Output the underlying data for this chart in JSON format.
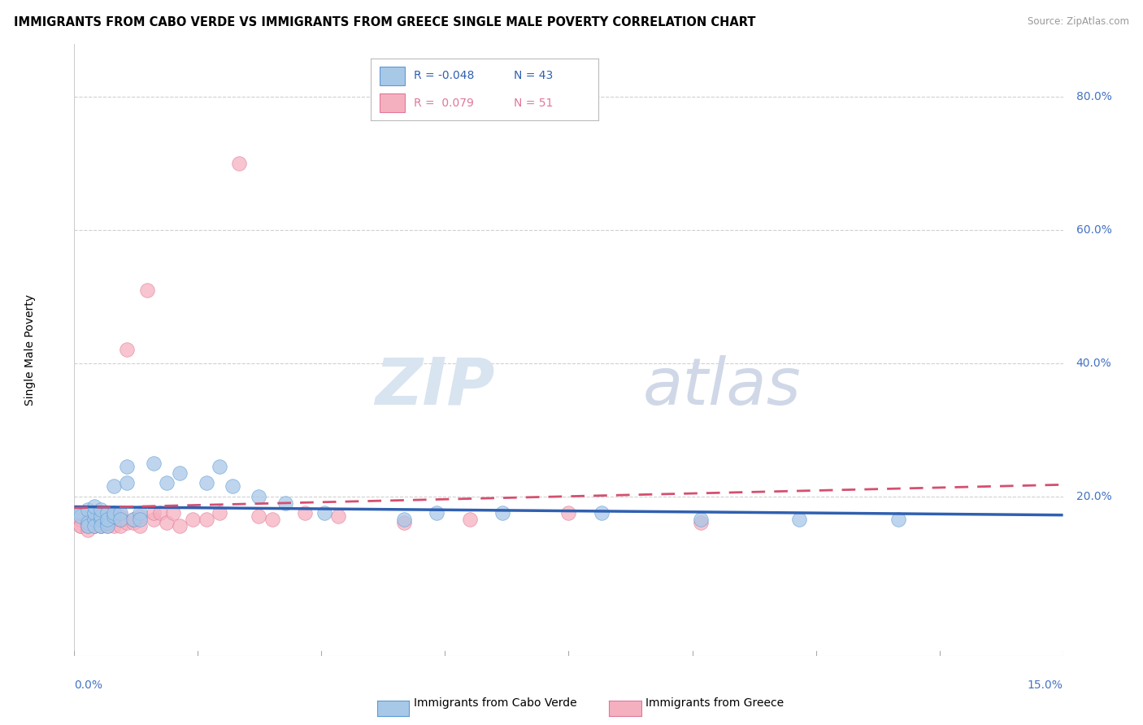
{
  "title": "IMMIGRANTS FROM CABO VERDE VS IMMIGRANTS FROM GREECE SINGLE MALE POVERTY CORRELATION CHART",
  "source": "Source: ZipAtlas.com",
  "ylabel": "Single Male Poverty",
  "xlim": [
    0.0,
    0.15
  ],
  "ylim": [
    -0.04,
    0.88
  ],
  "y_ticks": [
    0.2,
    0.4,
    0.6,
    0.8
  ],
  "y_tick_labels": [
    "20.0%",
    "40.0%",
    "60.0%",
    "80.0%"
  ],
  "x_left_label": "0.0%",
  "x_right_label": "15.0%",
  "legend_cabo_r": "-0.048",
  "legend_cabo_n": "43",
  "legend_greece_r": "0.079",
  "legend_greece_n": "51",
  "cabo_color": "#a8c8e8",
  "greece_color": "#f5b0c0",
  "cabo_edge_color": "#5b9bd5",
  "greece_edge_color": "#e07898",
  "cabo_line_color": "#3060b0",
  "greece_line_color": "#d45070",
  "watermark_zip": "ZIP",
  "watermark_atlas": "atlas",
  "background_color": "#ffffff",
  "grid_color": "#d0d0d0",
  "cabo_x": [
    0.001,
    0.001,
    0.002,
    0.002,
    0.002,
    0.003,
    0.003,
    0.003,
    0.003,
    0.004,
    0.004,
    0.004,
    0.004,
    0.005,
    0.005,
    0.005,
    0.005,
    0.006,
    0.006,
    0.006,
    0.007,
    0.007,
    0.008,
    0.008,
    0.009,
    0.01,
    0.01,
    0.012,
    0.014,
    0.016,
    0.02,
    0.022,
    0.024,
    0.028,
    0.032,
    0.038,
    0.05,
    0.055,
    0.065,
    0.08,
    0.095,
    0.11,
    0.125
  ],
  "cabo_y": [
    0.175,
    0.17,
    0.18,
    0.16,
    0.155,
    0.165,
    0.175,
    0.185,
    0.155,
    0.165,
    0.17,
    0.155,
    0.18,
    0.16,
    0.175,
    0.155,
    0.165,
    0.215,
    0.17,
    0.175,
    0.175,
    0.165,
    0.245,
    0.22,
    0.165,
    0.175,
    0.165,
    0.25,
    0.22,
    0.235,
    0.22,
    0.245,
    0.215,
    0.2,
    0.19,
    0.175,
    0.165,
    0.175,
    0.175,
    0.175,
    0.165,
    0.165,
    0.165
  ],
  "greece_x": [
    0.001,
    0.001,
    0.001,
    0.002,
    0.002,
    0.002,
    0.002,
    0.003,
    0.003,
    0.003,
    0.003,
    0.004,
    0.004,
    0.004,
    0.004,
    0.004,
    0.005,
    0.005,
    0.005,
    0.005,
    0.006,
    0.006,
    0.006,
    0.007,
    0.007,
    0.007,
    0.008,
    0.008,
    0.009,
    0.009,
    0.01,
    0.01,
    0.011,
    0.012,
    0.012,
    0.013,
    0.014,
    0.015,
    0.016,
    0.018,
    0.02,
    0.022,
    0.025,
    0.028,
    0.03,
    0.035,
    0.04,
    0.05,
    0.06,
    0.075,
    0.095
  ],
  "greece_y": [
    0.155,
    0.165,
    0.155,
    0.16,
    0.15,
    0.165,
    0.155,
    0.155,
    0.165,
    0.155,
    0.165,
    0.155,
    0.165,
    0.17,
    0.155,
    0.165,
    0.155,
    0.165,
    0.16,
    0.175,
    0.155,
    0.17,
    0.165,
    0.155,
    0.17,
    0.165,
    0.16,
    0.42,
    0.16,
    0.165,
    0.155,
    0.17,
    0.51,
    0.165,
    0.175,
    0.175,
    0.16,
    0.175,
    0.155,
    0.165,
    0.165,
    0.175,
    0.7,
    0.17,
    0.165,
    0.175,
    0.17,
    0.16,
    0.165,
    0.175,
    0.16
  ]
}
